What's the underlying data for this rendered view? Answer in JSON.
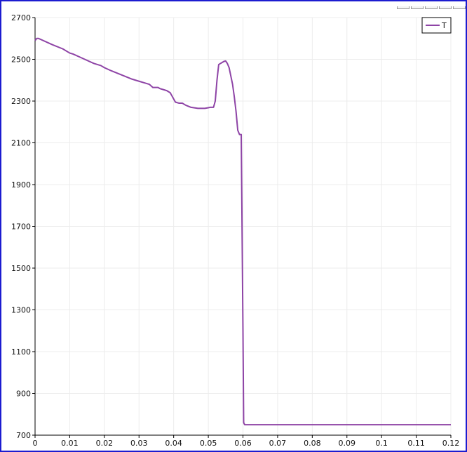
{
  "window": {
    "frame_color": "#1c1cd0"
  },
  "chart_data": {
    "type": "line",
    "title": "",
    "xlabel": "",
    "ylabel": "",
    "xlim": [
      0,
      0.12
    ],
    "ylim": [
      700,
      2700
    ],
    "x_ticks": [
      "0",
      "0.01",
      "0.02",
      "0.03",
      "0.04",
      "0.05",
      "0.06",
      "0.07",
      "0.08",
      "0.09",
      "0.1",
      "0.11",
      "0.12"
    ],
    "x_tick_values": [
      0,
      0.01,
      0.02,
      0.03,
      0.04,
      0.05,
      0.06,
      0.07,
      0.08,
      0.09,
      0.1,
      0.11,
      0.12
    ],
    "y_ticks": [
      "700",
      "900",
      "1100",
      "1300",
      "1500",
      "1700",
      "1900",
      "2100",
      "2300",
      "2500",
      "2700"
    ],
    "y_tick_values": [
      700,
      900,
      1100,
      1300,
      1500,
      1700,
      1900,
      2100,
      2300,
      2500,
      2700
    ],
    "grid": true,
    "legend": {
      "position": "top-right",
      "entries": [
        "T"
      ]
    },
    "series": [
      {
        "name": "T",
        "color": "#8e44a6",
        "x": [
          0,
          0.0005,
          0.001,
          0.005,
          0.008,
          0.01,
          0.011,
          0.013,
          0.015,
          0.017,
          0.019,
          0.02,
          0.022,
          0.025,
          0.028,
          0.03,
          0.032,
          0.033,
          0.034,
          0.0355,
          0.036,
          0.037,
          0.038,
          0.039,
          0.0395,
          0.0405,
          0.0415,
          0.0425,
          0.0435,
          0.045,
          0.047,
          0.049,
          0.05,
          0.0505,
          0.0515,
          0.052,
          0.0525,
          0.053,
          0.0535,
          0.054,
          0.0545,
          0.055,
          0.0555,
          0.056,
          0.0565,
          0.057,
          0.0575,
          0.058,
          0.0585,
          0.059,
          0.0595,
          0.06,
          0.0602,
          0.0605,
          0.061,
          0.065,
          0.07,
          0.08,
          0.09,
          0.1,
          0.11,
          0.12
        ],
        "y": [
          2590,
          2600,
          2600,
          2570,
          2550,
          2530,
          2525,
          2510,
          2495,
          2480,
          2470,
          2460,
          2445,
          2425,
          2405,
          2395,
          2385,
          2380,
          2365,
          2365,
          2360,
          2355,
          2350,
          2340,
          2325,
          2295,
          2290,
          2290,
          2280,
          2270,
          2265,
          2265,
          2268,
          2270,
          2270,
          2300,
          2400,
          2475,
          2480,
          2485,
          2490,
          2492,
          2480,
          2460,
          2420,
          2380,
          2320,
          2250,
          2160,
          2140,
          2140,
          1200,
          760,
          750,
          750,
          750,
          750,
          750,
          750,
          750,
          750,
          750
        ]
      }
    ]
  }
}
